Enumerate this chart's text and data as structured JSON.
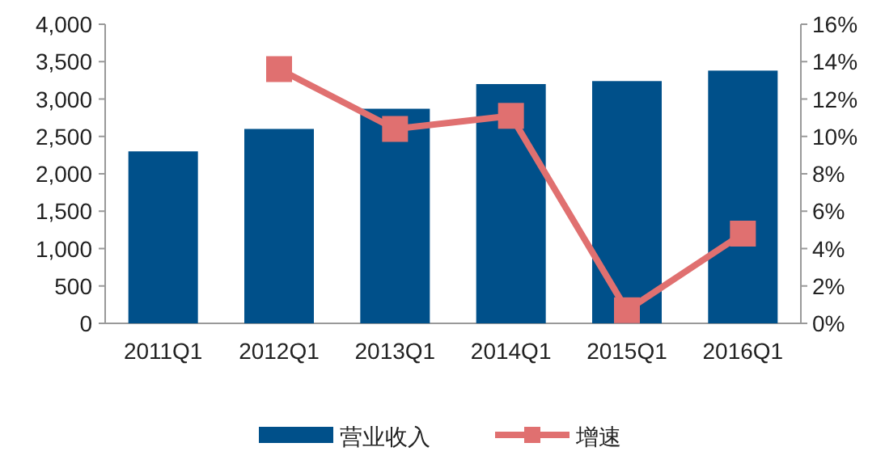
{
  "chart_data": {
    "type": "bar",
    "categories": [
      "2011Q1",
      "2012Q1",
      "2013Q1",
      "2014Q1",
      "2015Q1",
      "2016Q1"
    ],
    "series": [
      {
        "name": "营业收入",
        "color": "#00508a",
        "values": [
          2300,
          2600,
          2870,
          3200,
          3240,
          3380
        ]
      },
      {
        "name": "增速",
        "type": "line",
        "axis": "y2",
        "color": "#e07070",
        "marker": "square",
        "line_style": "solid",
        "values": [
          null,
          13.6,
          10.4,
          11.1,
          0.7,
          4.8
        ]
      }
    ],
    "ylim": [
      0,
      4000
    ],
    "yticks": [
      {
        "value": 0,
        "label": "0"
      },
      {
        "value": 500,
        "label": "500"
      },
      {
        "value": 1000,
        "label": "1,000"
      },
      {
        "value": 1500,
        "label": "1,500"
      },
      {
        "value": 2000,
        "label": "2,000"
      },
      {
        "value": 2500,
        "label": "2,500"
      },
      {
        "value": 3000,
        "label": "3,000"
      },
      {
        "value": 3500,
        "label": "3,500"
      },
      {
        "value": 4000,
        "label": "4,000"
      }
    ],
    "y2lim": [
      0,
      16
    ],
    "y2ticks": [
      {
        "value": 0,
        "label": "0%"
      },
      {
        "value": 2,
        "label": "2%"
      },
      {
        "value": 4,
        "label": "4%"
      },
      {
        "value": 6,
        "label": "6%"
      },
      {
        "value": 8,
        "label": "8%"
      },
      {
        "value": 10,
        "label": "10%"
      },
      {
        "value": 12,
        "label": "12%"
      },
      {
        "value": 14,
        "label": "14%"
      },
      {
        "value": 16,
        "label": "16%"
      }
    ],
    "legend": "bottom",
    "grid": false
  }
}
